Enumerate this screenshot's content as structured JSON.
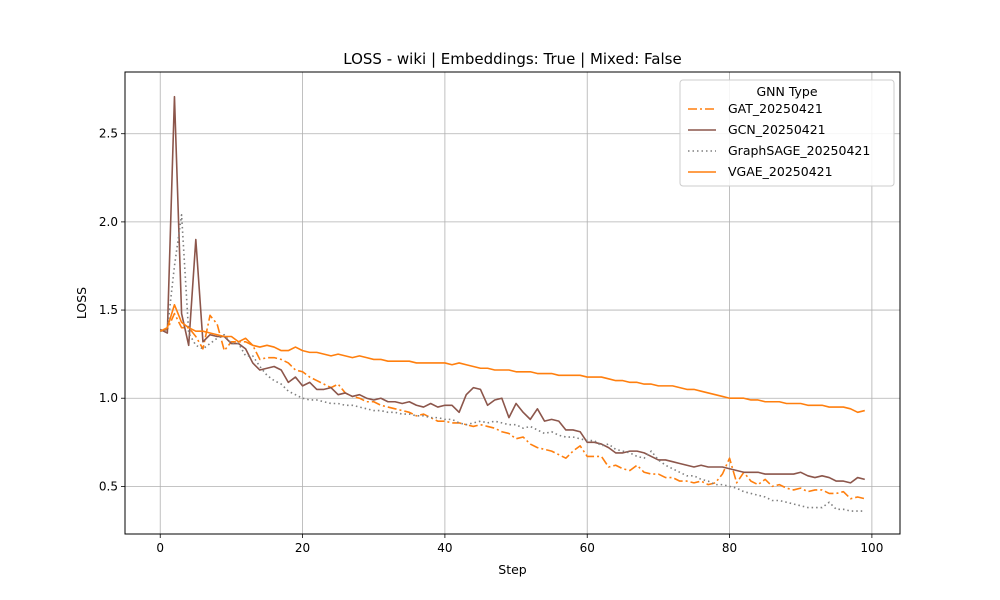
{
  "chart_data": {
    "type": "line",
    "title": "LOSS - wiki | Embeddings: True | Mixed: False",
    "xlabel": "Step",
    "ylabel": "LOSS",
    "xlim": [
      -4.95,
      103.95
    ],
    "ylim": [
      0.23,
      2.85
    ],
    "xticks": [
      0,
      20,
      40,
      60,
      80,
      100
    ],
    "yticks": [
      0.5,
      1.0,
      1.5,
      2.0,
      2.5
    ],
    "xtick_labels": [
      "0",
      "20",
      "40",
      "60",
      "80",
      "100"
    ],
    "ytick_labels": [
      "0.5",
      "1.0",
      "1.5",
      "2.0",
      "2.5"
    ],
    "grid": true,
    "legend_title": "GNN Type",
    "legend_position": "upper right",
    "series": [
      {
        "name": "GAT_20250421",
        "color": "#ff7f0e",
        "style": "dashdot",
        "y": [
          1.38,
          1.39,
          1.48,
          1.4,
          1.4,
          1.35,
          1.28,
          1.47,
          1.42,
          1.27,
          1.32,
          1.32,
          1.32,
          1.3,
          1.22,
          1.23,
          1.23,
          1.22,
          1.2,
          1.16,
          1.15,
          1.12,
          1.1,
          1.08,
          1.06,
          1.08,
          1.03,
          1.01,
          1.0,
          0.98,
          0.98,
          0.96,
          0.95,
          0.94,
          0.93,
          0.92,
          0.9,
          0.91,
          0.89,
          0.87,
          0.87,
          0.86,
          0.86,
          0.85,
          0.84,
          0.85,
          0.84,
          0.83,
          0.81,
          0.8,
          0.77,
          0.78,
          0.74,
          0.72,
          0.71,
          0.7,
          0.68,
          0.66,
          0.7,
          0.73,
          0.67,
          0.67,
          0.67,
          0.61,
          0.62,
          0.6,
          0.59,
          0.62,
          0.58,
          0.57,
          0.57,
          0.55,
          0.55,
          0.53,
          0.53,
          0.52,
          0.53,
          0.51,
          0.52,
          0.57,
          0.66,
          0.52,
          0.58,
          0.53,
          0.51,
          0.54,
          0.5,
          0.51,
          0.49,
          0.48,
          0.49,
          0.47,
          0.48,
          0.48,
          0.46,
          0.46,
          0.47,
          0.43,
          0.44,
          0.43
        ]
      },
      {
        "name": "GCN_20250421",
        "color": "#8c564b",
        "style": "solid",
        "y": [
          1.39,
          1.37,
          2.71,
          1.48,
          1.3,
          1.9,
          1.32,
          1.36,
          1.35,
          1.35,
          1.31,
          1.31,
          1.28,
          1.2,
          1.16,
          1.17,
          1.18,
          1.16,
          1.09,
          1.12,
          1.07,
          1.09,
          1.05,
          1.05,
          1.06,
          1.02,
          1.03,
          1.01,
          1.02,
          1.0,
          0.99,
          1.0,
          0.98,
          0.98,
          0.97,
          0.98,
          0.96,
          0.95,
          0.97,
          0.95,
          0.96,
          0.96,
          0.92,
          1.02,
          1.06,
          1.05,
          0.96,
          0.99,
          1.0,
          0.89,
          0.97,
          0.92,
          0.88,
          0.94,
          0.87,
          0.88,
          0.87,
          0.82,
          0.82,
          0.81,
          0.75,
          0.75,
          0.74,
          0.72,
          0.69,
          0.69,
          0.7,
          0.7,
          0.69,
          0.67,
          0.65,
          0.65,
          0.64,
          0.63,
          0.62,
          0.61,
          0.62,
          0.61,
          0.61,
          0.61,
          0.6,
          0.59,
          0.58,
          0.58,
          0.58,
          0.57,
          0.57,
          0.57,
          0.57,
          0.57,
          0.58,
          0.56,
          0.55,
          0.56,
          0.55,
          0.53,
          0.53,
          0.52,
          0.55,
          0.54
        ]
      },
      {
        "name": "GraphSAGE_20250421",
        "color": "#7f7f7f",
        "style": "dotted",
        "y": [
          1.38,
          1.39,
          1.75,
          2.04,
          1.37,
          1.3,
          1.28,
          1.31,
          1.34,
          1.36,
          1.31,
          1.31,
          1.24,
          1.24,
          1.18,
          1.13,
          1.1,
          1.08,
          1.04,
          1.02,
          1.0,
          0.99,
          0.99,
          0.98,
          0.97,
          0.97,
          0.96,
          0.96,
          0.95,
          0.94,
          0.93,
          0.93,
          0.92,
          0.92,
          0.91,
          0.91,
          0.9,
          0.9,
          0.89,
          0.89,
          0.88,
          0.88,
          0.86,
          0.85,
          0.86,
          0.87,
          0.86,
          0.87,
          0.86,
          0.85,
          0.85,
          0.83,
          0.84,
          0.82,
          0.8,
          0.81,
          0.79,
          0.78,
          0.78,
          0.77,
          0.76,
          0.76,
          0.73,
          0.74,
          0.71,
          0.7,
          0.69,
          0.67,
          0.66,
          0.7,
          0.65,
          0.62,
          0.6,
          0.58,
          0.56,
          0.56,
          0.54,
          0.53,
          0.51,
          0.51,
          0.5,
          0.49,
          0.47,
          0.46,
          0.45,
          0.44,
          0.42,
          0.42,
          0.41,
          0.4,
          0.39,
          0.38,
          0.38,
          0.38,
          0.41,
          0.37,
          0.37,
          0.36,
          0.36,
          0.36
        ]
      },
      {
        "name": "VGAE_20250421",
        "color": "#ff7f0e",
        "style": "solid",
        "y": [
          1.38,
          1.4,
          1.53,
          1.43,
          1.4,
          1.38,
          1.38,
          1.37,
          1.36,
          1.35,
          1.35,
          1.32,
          1.34,
          1.3,
          1.29,
          1.3,
          1.29,
          1.27,
          1.27,
          1.29,
          1.27,
          1.26,
          1.26,
          1.25,
          1.24,
          1.25,
          1.24,
          1.23,
          1.24,
          1.23,
          1.22,
          1.22,
          1.21,
          1.21,
          1.21,
          1.21,
          1.2,
          1.2,
          1.2,
          1.2,
          1.2,
          1.19,
          1.2,
          1.19,
          1.18,
          1.17,
          1.17,
          1.16,
          1.16,
          1.16,
          1.15,
          1.15,
          1.15,
          1.14,
          1.14,
          1.14,
          1.13,
          1.13,
          1.13,
          1.13,
          1.12,
          1.12,
          1.12,
          1.11,
          1.1,
          1.1,
          1.09,
          1.09,
          1.08,
          1.08,
          1.07,
          1.07,
          1.07,
          1.06,
          1.05,
          1.05,
          1.04,
          1.03,
          1.02,
          1.01,
          1.0,
          1.0,
          1.0,
          0.99,
          0.99,
          0.98,
          0.98,
          0.98,
          0.97,
          0.97,
          0.97,
          0.96,
          0.96,
          0.96,
          0.95,
          0.95,
          0.95,
          0.94,
          0.92,
          0.93
        ]
      }
    ]
  }
}
